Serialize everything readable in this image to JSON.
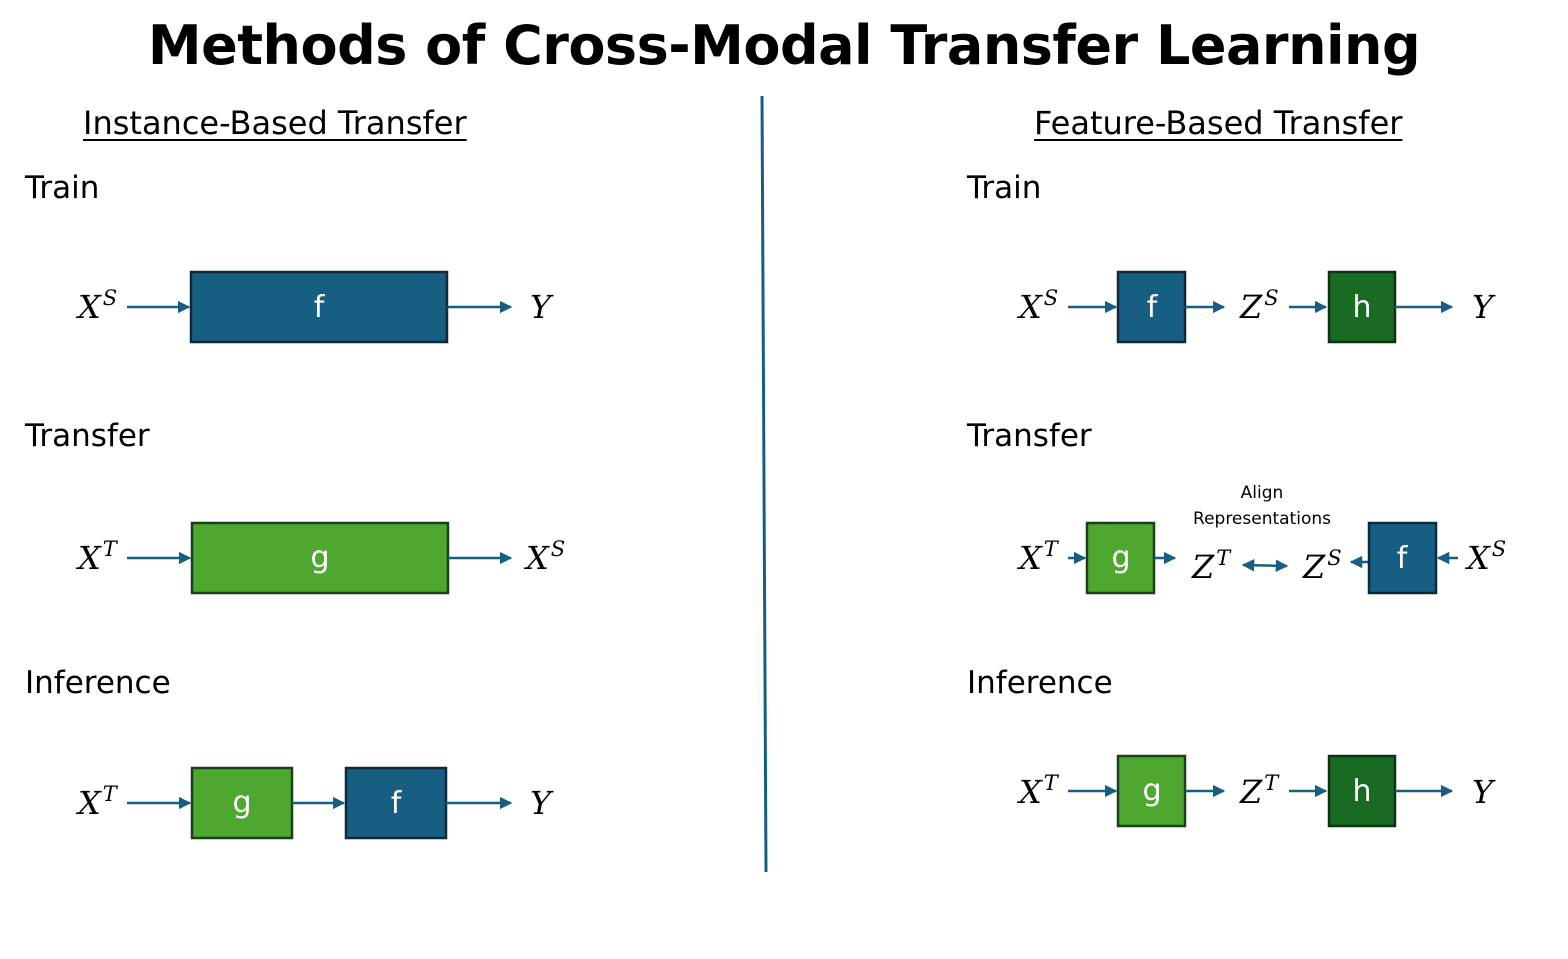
{
  "title": "Methods of Cross-Modal Transfer Learning",
  "colors": {
    "blue": "#175f82",
    "green_light": "#4ea72e",
    "green_dark": "#196b24",
    "arrow": "#175f82",
    "divider": "#175f82"
  },
  "left": {
    "heading": "Instance-Based Transfer",
    "stages": [
      {
        "label": "Train",
        "input": "X",
        "input_sup": "S",
        "blocks": [
          "f"
        ],
        "output": "Y",
        "output_sup": ""
      },
      {
        "label": "Transfer",
        "input": "X",
        "input_sup": "T",
        "blocks": [
          "g"
        ],
        "output": "X",
        "output_sup": "S"
      },
      {
        "label": "Inference",
        "input": "X",
        "input_sup": "T",
        "blocks": [
          "g",
          "f"
        ],
        "output": "Y",
        "output_sup": ""
      }
    ]
  },
  "right": {
    "heading": "Feature-Based Transfer",
    "stages": [
      {
        "label": "Train",
        "input": "X",
        "input_sup": "S",
        "block1": "f",
        "mid": "Z",
        "mid_sup": "S",
        "block2": "h",
        "output": "Y"
      },
      {
        "label": "Transfer",
        "left_input": "X",
        "left_input_sup": "T",
        "left_block": "g",
        "left_z": "Z",
        "left_z_sup": "T",
        "note_line1": "Align",
        "note_line2": "Representations",
        "right_z": "Z",
        "right_z_sup": "S",
        "right_block": "f",
        "right_input": "X",
        "right_input_sup": "S"
      },
      {
        "label": "Inference",
        "input": "X",
        "input_sup": "T",
        "block1": "g",
        "mid": "Z",
        "mid_sup": "T",
        "block2": "h",
        "output": "Y"
      }
    ]
  }
}
